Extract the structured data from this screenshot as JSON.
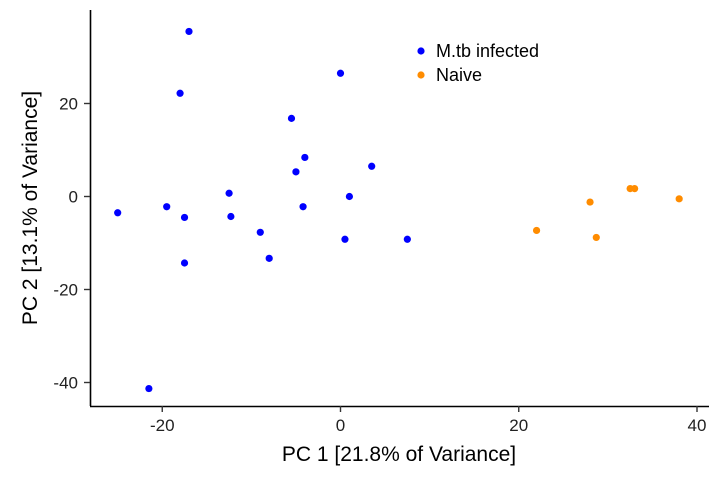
{
  "chart_data": {
    "type": "scatter",
    "xlabel": "PC 1 [21.8% of Variance]",
    "ylabel": "PC 2 [13.1% of Variance]",
    "xlim": [
      -28,
      41
    ],
    "ylim": [
      -45,
      40
    ],
    "x_ticks": [
      -20,
      0,
      20,
      40
    ],
    "y_ticks": [
      -40,
      -20,
      0,
      20
    ],
    "grid": false,
    "legend_position": "top-center",
    "series": [
      {
        "name": "M.tb infected",
        "color": "#0000ff",
        "points": [
          [
            -17.0,
            35.5
          ],
          [
            0.0,
            26.5
          ],
          [
            -18.0,
            22.2
          ],
          [
            -5.5,
            16.8
          ],
          [
            -4.0,
            8.4
          ],
          [
            -5.0,
            5.3
          ],
          [
            3.5,
            6.5
          ],
          [
            -12.5,
            0.7
          ],
          [
            1.0,
            0.0
          ],
          [
            -19.5,
            -2.2
          ],
          [
            -4.2,
            -2.2
          ],
          [
            -25.0,
            -3.5
          ],
          [
            -17.5,
            -4.5
          ],
          [
            -12.3,
            -4.3
          ],
          [
            -9.0,
            -7.7
          ],
          [
            0.5,
            -9.2
          ],
          [
            7.5,
            -9.2
          ],
          [
            -8.0,
            -13.3
          ],
          [
            -17.5,
            -14.3
          ],
          [
            -21.5,
            -41.3
          ]
        ]
      },
      {
        "name": "Naive",
        "color": "#ff8c00",
        "points": [
          [
            22.0,
            -7.3
          ],
          [
            28.0,
            -1.2
          ],
          [
            28.7,
            -8.8
          ],
          [
            32.5,
            1.7
          ],
          [
            33.0,
            1.7
          ],
          [
            38.0,
            -0.5
          ]
        ]
      }
    ]
  }
}
